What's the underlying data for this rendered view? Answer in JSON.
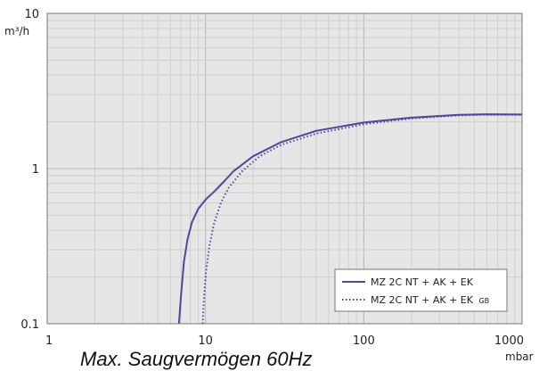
{
  "caption": "Max. Saugvermögen 60Hz",
  "chart_data": {
    "type": "line",
    "title": "",
    "xlabel": "",
    "ylabel": "",
    "x_unit": "mbar",
    "y_unit": "m³/h",
    "x_scale": "log",
    "y_scale": "log",
    "xlim": [
      1,
      1000
    ],
    "ylim": [
      0.1,
      10
    ],
    "x_ticks": [
      {
        "value": 1,
        "label": "1"
      },
      {
        "value": 10,
        "label": "10"
      },
      {
        "value": 100,
        "label": "100"
      },
      {
        "value": 1000,
        "label": "1000"
      }
    ],
    "y_ticks": [
      {
        "value": 0.1,
        "label": "0.1"
      },
      {
        "value": 1,
        "label": "1"
      },
      {
        "value": 10,
        "label": "10"
      }
    ],
    "grid": true,
    "background": "#e6e6e6",
    "legend_position": "bottom-right",
    "series": [
      {
        "name": "MZ 2C NT + AK + EK",
        "style": "solid",
        "color": "#4a4a9a",
        "x": [
          6.8,
          7.0,
          7.3,
          7.7,
          8.2,
          9.0,
          10.0,
          11.5,
          13.0,
          15.0,
          20.0,
          30.0,
          50.0,
          100.0,
          200.0,
          400.0,
          600.0,
          1000.0
        ],
        "y": [
          0.1,
          0.15,
          0.25,
          0.35,
          0.45,
          0.55,
          0.63,
          0.72,
          0.82,
          0.96,
          1.2,
          1.48,
          1.75,
          1.98,
          2.13,
          2.22,
          2.24,
          2.23
        ]
      },
      {
        "name": "MZ 2C NT + AK + EK",
        "name_subscript": "GB",
        "style": "dotted",
        "color": "#4a4a9a",
        "x": [
          9.6,
          9.8,
          10.1,
          10.6,
          11.3,
          12.5,
          14.0,
          17.0,
          22.0,
          30.0,
          50.0,
          100.0,
          200.0,
          400.0,
          600.0,
          1000.0
        ],
        "y": [
          0.1,
          0.15,
          0.22,
          0.32,
          0.44,
          0.6,
          0.75,
          0.96,
          1.2,
          1.42,
          1.68,
          1.93,
          2.1,
          2.2,
          2.22,
          2.22
        ]
      }
    ]
  }
}
